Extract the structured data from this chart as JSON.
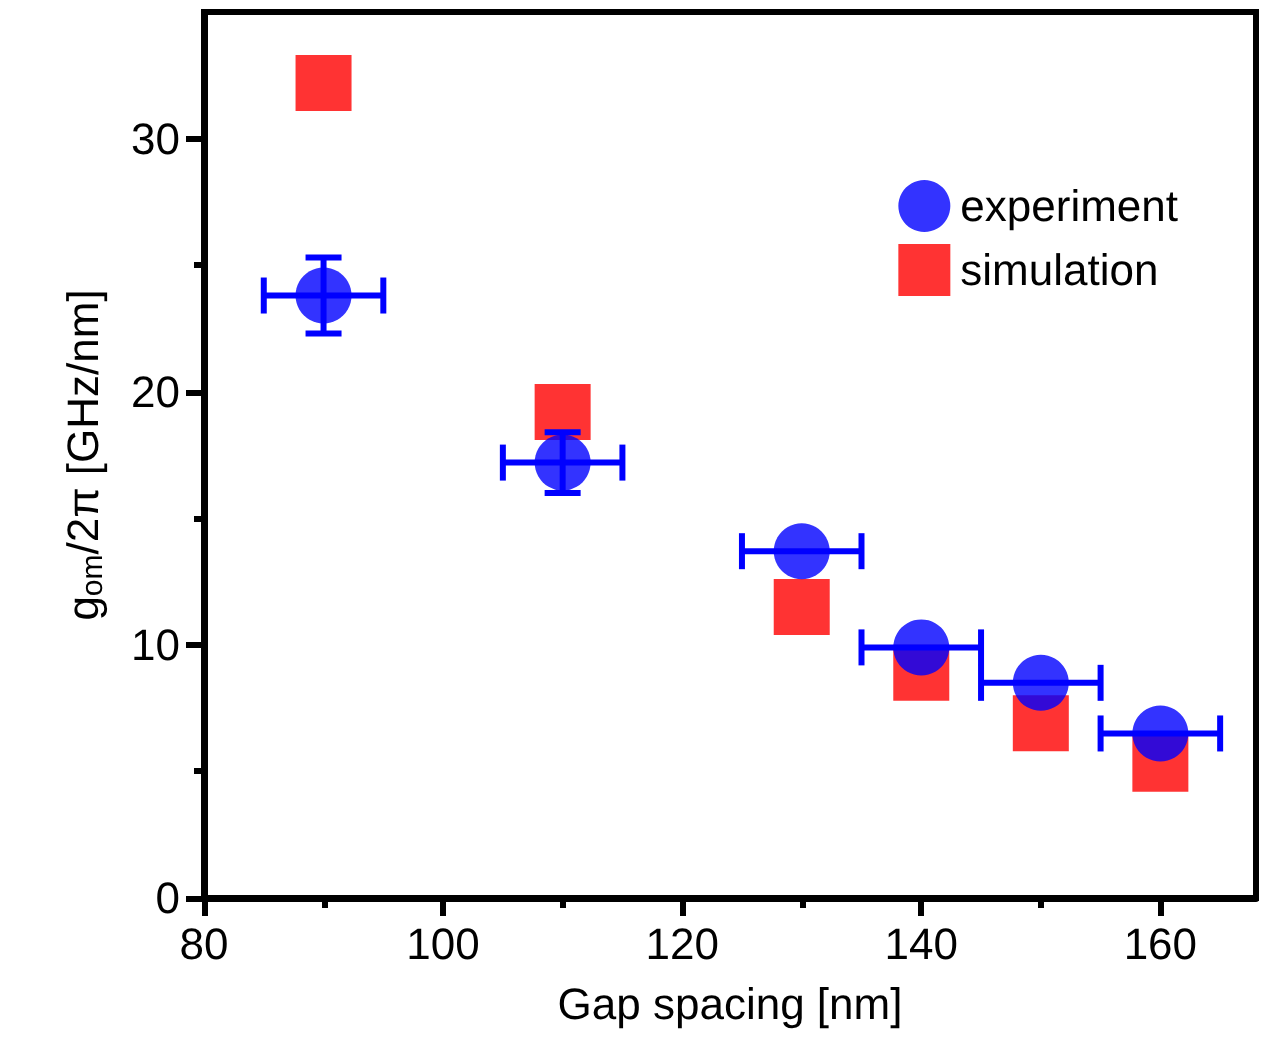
{
  "chart_data": {
    "type": "scatter",
    "xlabel": "Gap spacing [nm]",
    "ylabel": "g$_{om}$/2π [GHz/nm]",
    "xlim": [
      80,
      168
    ],
    "xticks": [
      80,
      100,
      120,
      140,
      160
    ],
    "ylim": [
      0,
      35
    ],
    "yticks": [
      0,
      10,
      20,
      30
    ],
    "legend": "top right",
    "grid": false,
    "series": [
      {
        "name": "experiment",
        "color": "#0000ff",
        "marker": "circle",
        "x": [
          90,
          110,
          130,
          140,
          150,
          160
        ],
        "values": [
          23.8,
          17.2,
          13.7,
          9.9,
          8.5,
          6.5
        ],
        "errors": [
          1.5,
          1.2,
          null,
          null,
          null,
          null
        ],
        "xerrors": [
          5,
          5,
          5,
          5,
          5,
          5
        ]
      },
      {
        "name": "simulation",
        "color": "#ff0000",
        "marker": "square",
        "x": [
          90,
          110,
          130,
          140,
          150,
          160
        ],
        "values": [
          32.2,
          19.2,
          11.5,
          8.9,
          6.9,
          5.3
        ]
      }
    ]
  }
}
